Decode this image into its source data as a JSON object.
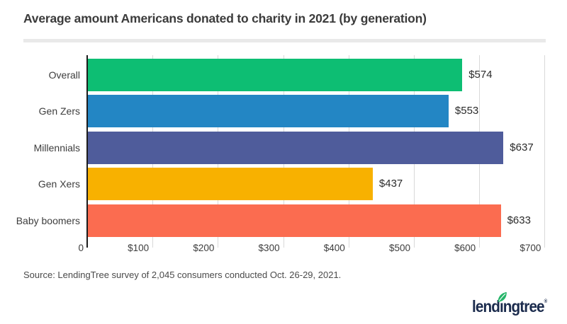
{
  "title": "Average amount Americans donated to charity in 2021 (by generation)",
  "source_note": "Source: LendingTree survey of 2,045 consumers conducted Oct. 26-29, 2021.",
  "logo": {
    "text": "lendingtree",
    "registered": "®",
    "navy": "#1b2b4d",
    "leaf_green": "#25b569"
  },
  "colors": {
    "axis_line": "#1c1c1c",
    "gridline": "#d9d9d9",
    "divider": "#e9e9e9",
    "title_text": "#3b3b3b",
    "label_text": "#3d3d3d",
    "value_text": "#2b2b2b"
  },
  "chart_data": {
    "type": "bar",
    "orientation": "horizontal",
    "title": "Average amount Americans donated to charity in 2021 (by generation)",
    "categories": [
      "Overall",
      "Gen Zers",
      "Millennials",
      "Gen Xers",
      "Baby boomers"
    ],
    "values": [
      574,
      553,
      637,
      437,
      633
    ],
    "value_labels": [
      "$574",
      "$553",
      "$637",
      "$437",
      "$633"
    ],
    "bar_colors": [
      "#0dbe73",
      "#2386c4",
      "#4f5c9b",
      "#f8b100",
      "#fb6c50"
    ],
    "x_tick_values": [
      0,
      100,
      200,
      300,
      400,
      500,
      600,
      700
    ],
    "x_tick_labels": [
      "0",
      "$100",
      "$200",
      "$300",
      "$400",
      "$500",
      "$600",
      "$700"
    ],
    "xlim": [
      0,
      700
    ],
    "xlabel": "",
    "ylabel": "",
    "grid": true,
    "legend": false
  }
}
